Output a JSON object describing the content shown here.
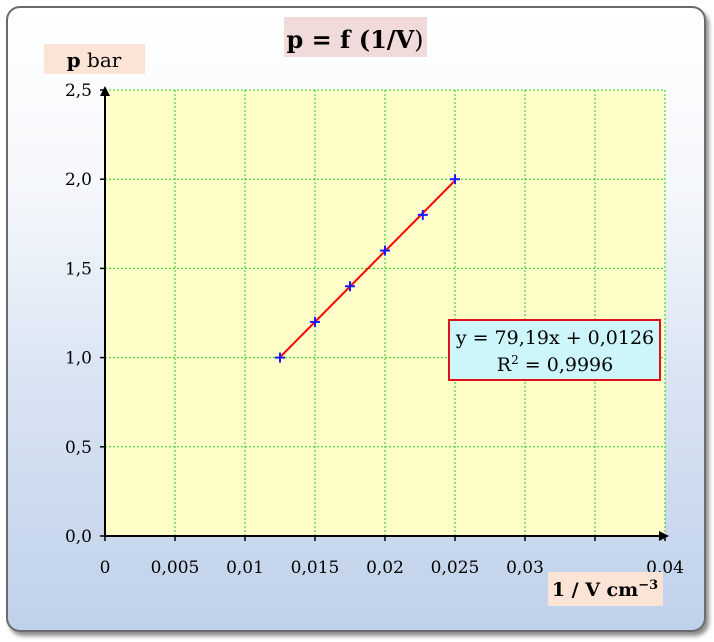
{
  "chart_data": {
    "type": "scatter",
    "title_prefix": "p = f (1/",
    "title_var": "V",
    "title_suffix": ")",
    "ylabel_bold": "p",
    "ylabel_unit": " bar",
    "xlabel_main": "1 / V cm",
    "xlabel_sup": "−3",
    "xlim": [
      0,
      0.04
    ],
    "ylim": [
      0,
      2.5
    ],
    "x_ticks": [
      "0",
      "0,005",
      "0,01",
      "0,015",
      "0,02",
      "0,025",
      "0,03",
      "",
      "0,04"
    ],
    "y_ticks": [
      "0,0",
      "0,5",
      "1,0",
      "1,5",
      "2,0",
      "2,5"
    ],
    "grid": true,
    "series": [
      {
        "points": [
          {
            "x": 0.0125,
            "y": 1.0
          },
          {
            "x": 0.015,
            "y": 1.2
          },
          {
            "x": 0.0175,
            "y": 1.4
          },
          {
            "x": 0.02,
            "y": 1.6
          },
          {
            "x": 0.0227,
            "y": 1.8
          },
          {
            "x": 0.025,
            "y": 2.0
          }
        ],
        "marker_color": "#1a1aff"
      }
    ],
    "trendline": {
      "slope": 79.19,
      "intercept": 0.0126,
      "x_range": [
        0.0125,
        0.025
      ],
      "color": "#ff0000",
      "equation": "y = 79,19x + 0,0126",
      "r2_label": "R",
      "r2_sup": "2",
      "r2_value": " = 0,9996"
    },
    "colors": {
      "plot_bg": "#fffdc8",
      "grid": "#22cc22",
      "title_box": "#f1dada",
      "label_box": "#fbe3d6",
      "equation_box": "#cdf6fb",
      "equation_border": "#e0101a"
    }
  }
}
